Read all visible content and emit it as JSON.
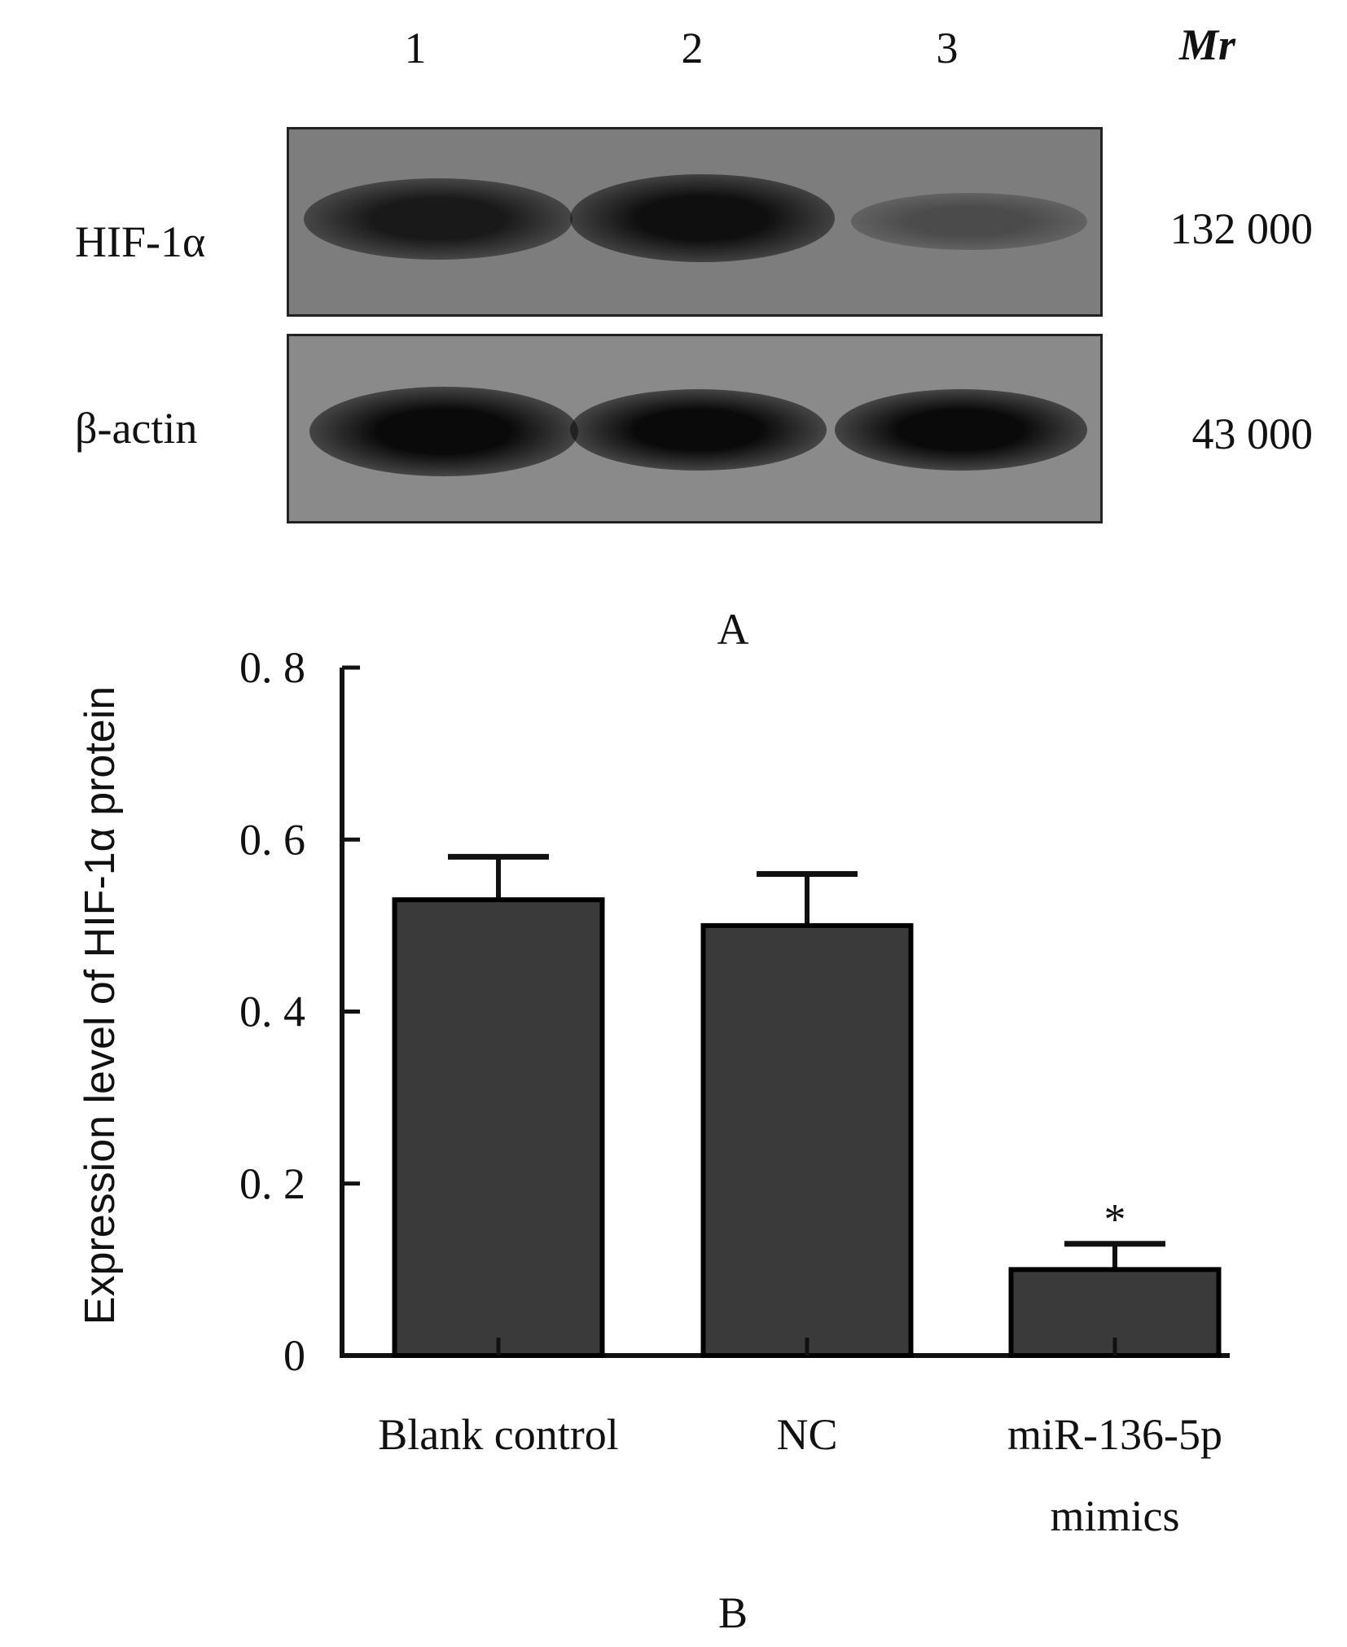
{
  "blot": {
    "lanes": [
      "1",
      "2",
      "3"
    ],
    "mr_label": "Mr",
    "rows": [
      {
        "label": "HIF-1α",
        "mw": "132  000",
        "band_intensity": [
          0.85,
          0.95,
          0.35
        ]
      },
      {
        "label": "β-actin",
        "mw": "43  000",
        "band_intensity": [
          1.0,
          1.0,
          1.0
        ]
      }
    ],
    "panel_label": "A"
  },
  "chart_data": {
    "type": "bar",
    "categories": [
      "Blank control",
      "NC",
      "miR-136-5p mimics"
    ],
    "category_lines": [
      [
        "Blank control"
      ],
      [
        "NC"
      ],
      [
        "miR-136-5p",
        "mimics"
      ]
    ],
    "values": [
      0.53,
      0.5,
      0.1
    ],
    "errors": [
      0.05,
      0.06,
      0.03
    ],
    "significance": [
      "",
      "",
      "*"
    ],
    "yticks": [
      "0",
      "0. 2",
      "0. 4",
      "0. 6",
      "0. 8"
    ],
    "ytick_values": [
      0,
      0.2,
      0.4,
      0.6,
      0.8
    ],
    "ylim": [
      0,
      0.8
    ],
    "ylabel": "Expression level of HIF-1α  protein",
    "xlabel": "",
    "bar_color": "#3a3a3a",
    "panel_label": "B"
  }
}
